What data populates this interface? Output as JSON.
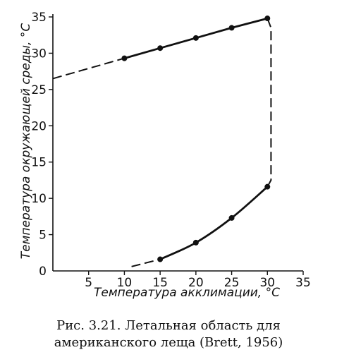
{
  "chart_data": {
    "type": "line",
    "xlabel": "Температура акклимации, °C",
    "ylabel": "Температура окружающей среды, °C",
    "xlim": [
      0,
      35
    ],
    "ylim": [
      0,
      35
    ],
    "xticks": [
      5,
      10,
      15,
      20,
      25,
      30,
      35
    ],
    "yticks": [
      0,
      5,
      10,
      15,
      20,
      25,
      30,
      35
    ],
    "grid": false,
    "series": [
      {
        "role": "upper-lethal-limit",
        "points": [
          [
            10,
            29.3
          ],
          [
            15,
            30.7
          ],
          [
            20,
            32.1
          ],
          [
            25,
            33.5
          ],
          [
            30,
            34.8
          ]
        ],
        "dashed_extension": [
          [
            0,
            26.5
          ],
          [
            10,
            29.3
          ]
        ]
      },
      {
        "role": "lower-lethal-limit",
        "points": [
          [
            15,
            1.6
          ],
          [
            20,
            3.9
          ],
          [
            25,
            7.3
          ],
          [
            30,
            11.6
          ]
        ],
        "dashed_extension": [
          [
            11,
            0.6
          ],
          [
            15,
            1.6
          ]
        ]
      }
    ],
    "connector_dashed": [
      [
        30,
        34.8
      ],
      [
        30.5,
        33.5
      ],
      [
        30.5,
        12.5
      ],
      [
        30,
        11.6
      ]
    ]
  },
  "caption": {
    "line1": "Рис. 3.21. Летальная область для",
    "line2": "американского леща (Brett, 1956)"
  }
}
